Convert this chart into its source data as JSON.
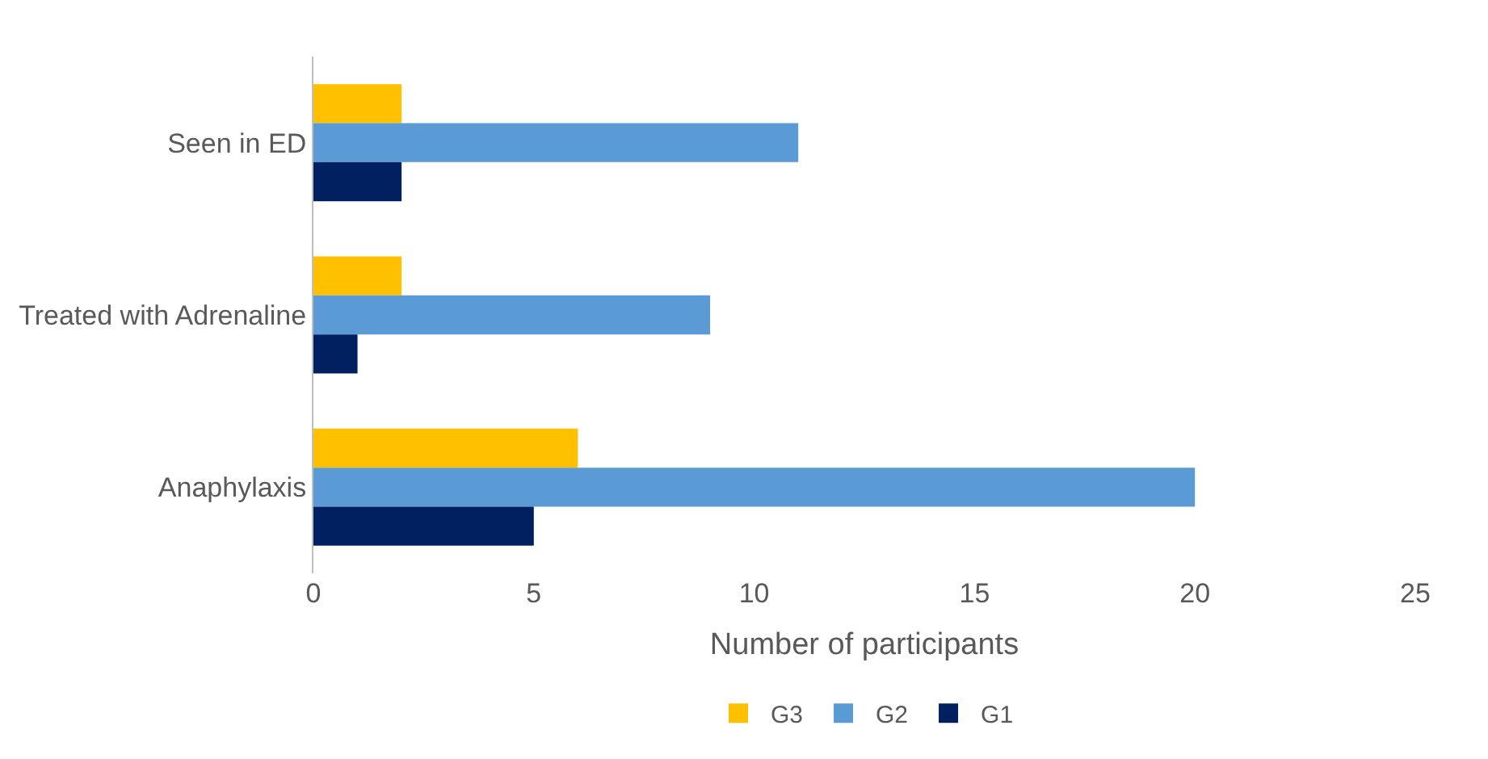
{
  "chart_data": {
    "type": "bar",
    "orientation": "horizontal",
    "categories": [
      "Seen in ED",
      "Treated with Adrenaline",
      "Anaphylaxis"
    ],
    "series": [
      {
        "name": "G3",
        "color": "#ffc000",
        "values": [
          2,
          2,
          6
        ]
      },
      {
        "name": "G2",
        "color": "#5b9bd5",
        "values": [
          11,
          9,
          20
        ]
      },
      {
        "name": "G1",
        "color": "#002060",
        "values": [
          2,
          1,
          5
        ]
      }
    ],
    "xlabel": "Number of participants",
    "xlim": [
      0,
      25
    ],
    "xticks": [
      0,
      5,
      10,
      15,
      20,
      25
    ],
    "grid": false,
    "legend": "bottom"
  }
}
